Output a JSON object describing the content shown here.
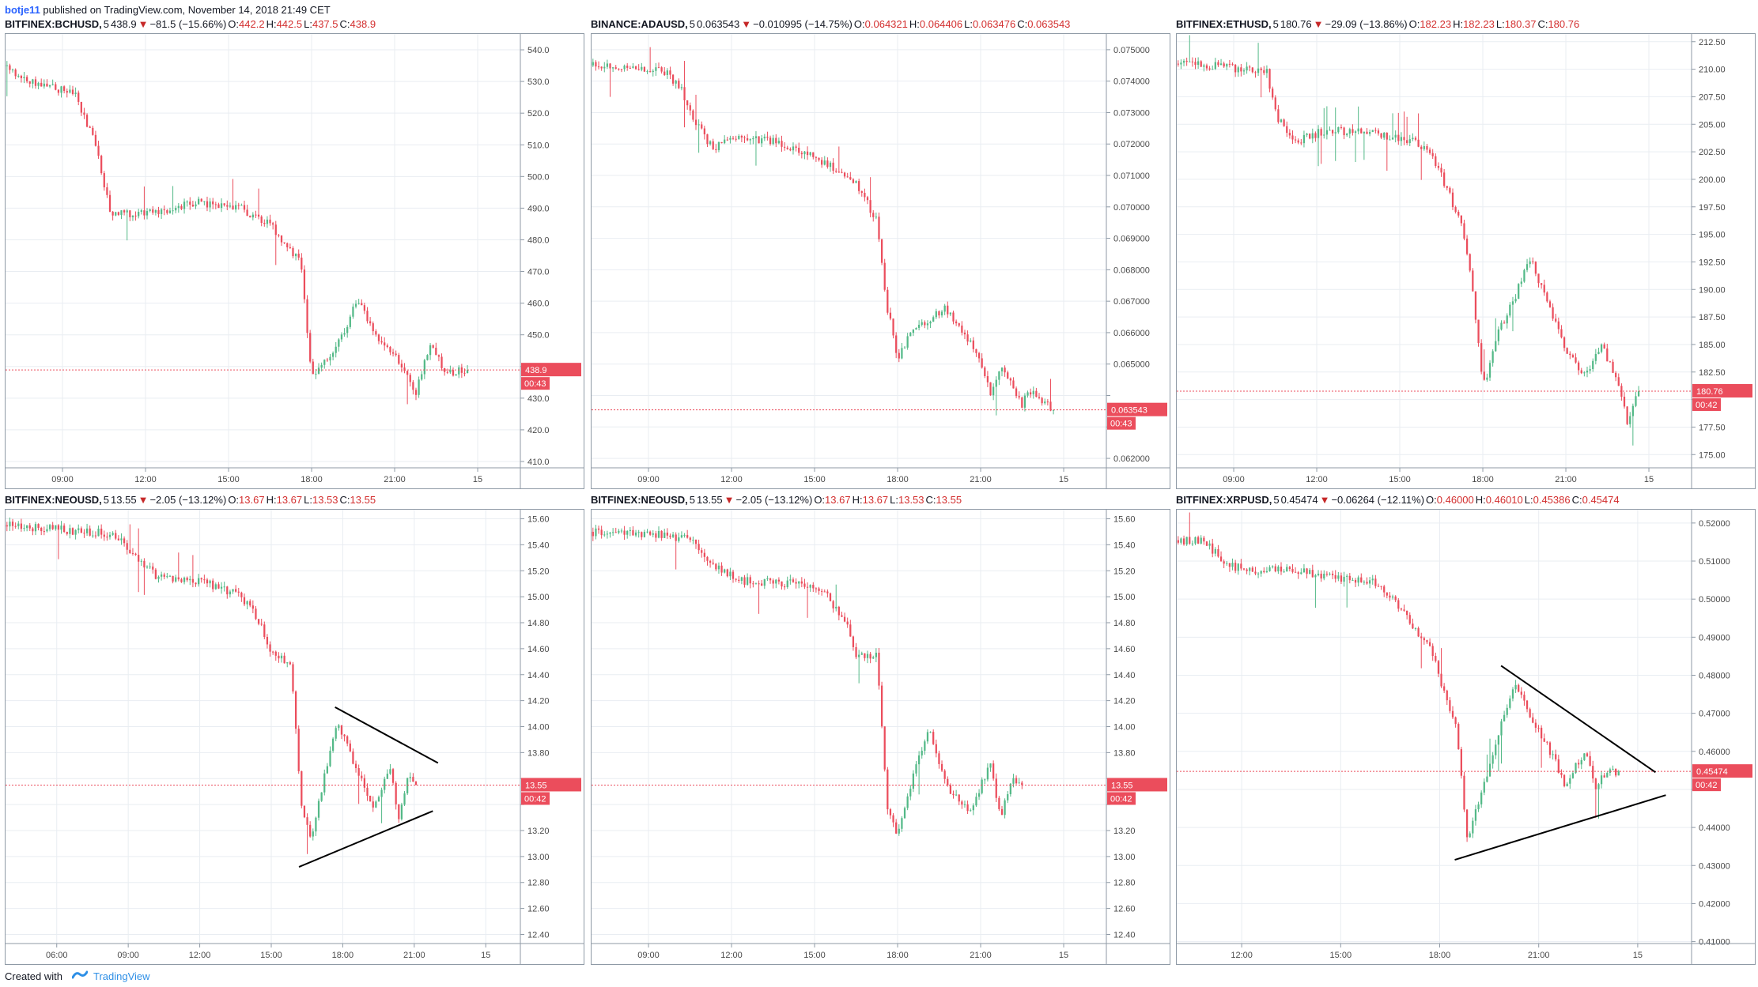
{
  "header": {
    "user": "botje11",
    "text": "published on TradingView.com, November 14, 2018 21:49 CET"
  },
  "footer": {
    "created_with": "Created with",
    "brand": "TradingView"
  },
  "colors": {
    "up": "#53b987",
    "down": "#eb4d5c",
    "price_line": "#eb4d5c",
    "grid": "#e9edf2",
    "axis_text": "#4a4a4a",
    "trendline": "#000000"
  },
  "panels": [
    {
      "symbol": "BITFINEX:BCHUSD",
      "interval": "5",
      "last": "438.9",
      "change": "−81.5 (−15.66%)",
      "o": "442.2",
      "h": "442.5",
      "l": "437.5",
      "c": "438.9",
      "price_tag": "438.9",
      "countdown": "00:43",
      "chart_data": {
        "type": "candlestick",
        "y_ticks": [
          410,
          420,
          430,
          440,
          450,
          460,
          470,
          480,
          490,
          500,
          510,
          520,
          530,
          540
        ],
        "y_tick_labels": [
          "410.0",
          "420.0",
          "430.0",
          "",
          "450.0",
          "460.0",
          "470.0",
          "480.0",
          "490.0",
          "500.0",
          "510.0",
          "520.0",
          "530.0",
          "540.0"
        ],
        "ylim": [
          408,
          545
        ],
        "x_ticks": [
          "09:00",
          "12:00",
          "15:00",
          "18:00",
          "21:00",
          "15"
        ],
        "path": [
          [
            0,
            535
          ],
          [
            0.06,
            530
          ],
          [
            0.14,
            526
          ],
          [
            0.18,
            510
          ],
          [
            0.21,
            488
          ],
          [
            0.3,
            489
          ],
          [
            0.38,
            492
          ],
          [
            0.46,
            490
          ],
          [
            0.52,
            485
          ],
          [
            0.58,
            472
          ],
          [
            0.6,
            436
          ],
          [
            0.63,
            442
          ],
          [
            0.66,
            450
          ],
          [
            0.69,
            462
          ],
          [
            0.72,
            450
          ],
          [
            0.78,
            440
          ],
          [
            0.8,
            430
          ],
          [
            0.83,
            448
          ],
          [
            0.86,
            438
          ],
          [
            0.9,
            438.9
          ]
        ],
        "last": 438.9
      }
    },
    {
      "symbol": "BINANCE:ADAUSD",
      "interval": "5",
      "last": "0.063543",
      "change": "−0.010995 (−14.75%)",
      "o": "0.064321",
      "h": "0.064406",
      "l": "0.063476",
      "c": "0.063543",
      "price_tag": "0.063543",
      "countdown": "00:43",
      "chart_data": {
        "type": "candlestick",
        "y_ticks": [
          0.062,
          0.063,
          0.064,
          0.065,
          0.066,
          0.067,
          0.068,
          0.069,
          0.07,
          0.071,
          0.072,
          0.073,
          0.074,
          0.075
        ],
        "y_tick_labels": [
          "0.062000",
          "",
          "",
          "0.065000",
          "0.066000",
          "0.067000",
          "0.068000",
          "0.069000",
          "0.070000",
          "0.071000",
          "0.072000",
          "0.073000",
          "0.074000",
          "0.075000"
        ],
        "ylim": [
          0.0617,
          0.0755
        ],
        "x_ticks": [
          "09:00",
          "12:00",
          "15:00",
          "18:00",
          "21:00",
          "15"
        ],
        "path": [
          [
            0,
            0.0745
          ],
          [
            0.14,
            0.0744
          ],
          [
            0.18,
            0.0738
          ],
          [
            0.2,
            0.0728
          ],
          [
            0.24,
            0.0719
          ],
          [
            0.3,
            0.0722
          ],
          [
            0.38,
            0.072
          ],
          [
            0.46,
            0.0714
          ],
          [
            0.52,
            0.0708
          ],
          [
            0.56,
            0.0695
          ],
          [
            0.58,
            0.0668
          ],
          [
            0.6,
            0.0652
          ],
          [
            0.63,
            0.0661
          ],
          [
            0.66,
            0.0664
          ],
          [
            0.69,
            0.0668
          ],
          [
            0.72,
            0.0662
          ],
          [
            0.76,
            0.0652
          ],
          [
            0.78,
            0.0641
          ],
          [
            0.8,
            0.0648
          ],
          [
            0.82,
            0.0645
          ],
          [
            0.84,
            0.0637
          ],
          [
            0.86,
            0.0642
          ],
          [
            0.9,
            0.063543
          ]
        ],
        "last": 0.063543
      }
    },
    {
      "symbol": "BITFINEX:ETHUSD",
      "interval": "5",
      "last": "180.76",
      "change": "−29.09 (−13.86%)",
      "o": "182.23",
      "h": "182.23",
      "l": "180.37",
      "c": "180.76",
      "price_tag": "180.76",
      "countdown": "00:42",
      "chart_data": {
        "type": "candlestick",
        "y_ticks": [
          175,
          177.5,
          180,
          182.5,
          185,
          187.5,
          190,
          192.5,
          195,
          197.5,
          200,
          202.5,
          205,
          207.5,
          210,
          212.5
        ],
        "y_tick_labels": [
          "175.00",
          "177.50",
          "",
          "182.50",
          "185.00",
          "187.50",
          "190.00",
          "192.50",
          "195.00",
          "197.50",
          "200.00",
          "202.50",
          "205.00",
          "207.50",
          "210.00",
          "212.50"
        ],
        "ylim": [
          173.8,
          213.2
        ],
        "x_ticks": [
          "09:00",
          "12:00",
          "15:00",
          "18:00",
          "21:00",
          "15"
        ],
        "path": [
          [
            0,
            210.5
          ],
          [
            0.1,
            210.2
          ],
          [
            0.18,
            209.8
          ],
          [
            0.2,
            205.5
          ],
          [
            0.24,
            203.5
          ],
          [
            0.3,
            204.5
          ],
          [
            0.38,
            204.2
          ],
          [
            0.46,
            203.5
          ],
          [
            0.5,
            202.5
          ],
          [
            0.54,
            198
          ],
          [
            0.56,
            196
          ],
          [
            0.58,
            190
          ],
          [
            0.6,
            181
          ],
          [
            0.63,
            186
          ],
          [
            0.66,
            189
          ],
          [
            0.69,
            193
          ],
          [
            0.72,
            189.5
          ],
          [
            0.76,
            184.5
          ],
          [
            0.8,
            182
          ],
          [
            0.83,
            185
          ],
          [
            0.86,
            182
          ],
          [
            0.88,
            178
          ],
          [
            0.9,
            180.76
          ]
        ],
        "last": 180.76
      }
    },
    {
      "symbol": "BITFINEX:NEOUSD",
      "interval": "5",
      "last": "13.55",
      "change": "−2.05 (−13.12%)",
      "o": "13.67",
      "h": "13.67",
      "l": "13.53",
      "c": "13.55",
      "price_tag": "13.55",
      "countdown": "00:42",
      "chart_data": {
        "type": "candlestick",
        "y_ticks": [
          12.4,
          12.6,
          12.8,
          13.0,
          13.2,
          13.4,
          13.6,
          13.8,
          14.0,
          14.2,
          14.4,
          14.6,
          14.8,
          15.0,
          15.2,
          15.4,
          15.6
        ],
        "y_tick_labels": [
          "12.40",
          "12.60",
          "12.80",
          "13.00",
          "13.20",
          "",
          "",
          "13.80",
          "14.00",
          "14.20",
          "14.40",
          "14.60",
          "14.80",
          "15.00",
          "15.20",
          "15.40",
          "15.60"
        ],
        "ylim": [
          12.33,
          15.67
        ],
        "x_ticks": [
          "06:00",
          "09:00",
          "12:00",
          "15:00",
          "18:00",
          "21:00",
          "15"
        ],
        "path": [
          [
            0,
            15.55
          ],
          [
            0.1,
            15.52
          ],
          [
            0.22,
            15.48
          ],
          [
            0.26,
            15.3
          ],
          [
            0.3,
            15.15
          ],
          [
            0.38,
            15.12
          ],
          [
            0.46,
            15.02
          ],
          [
            0.5,
            14.8
          ],
          [
            0.52,
            14.55
          ],
          [
            0.56,
            14.5
          ],
          [
            0.58,
            13.4
          ],
          [
            0.6,
            13.15
          ],
          [
            0.63,
            13.7
          ],
          [
            0.65,
            14.05
          ],
          [
            0.68,
            13.75
          ],
          [
            0.72,
            13.35
          ],
          [
            0.75,
            13.7
          ],
          [
            0.77,
            13.3
          ],
          [
            0.79,
            13.65
          ],
          [
            0.8,
            13.55
          ]
        ],
        "last": 13.55,
        "trendlines": [
          [
            [
              0.64,
              14.15
            ],
            [
              0.84,
              13.72
            ]
          ],
          [
            [
              0.57,
              12.92
            ],
            [
              0.83,
              13.35
            ]
          ]
        ]
      }
    },
    {
      "symbol": "BITFINEX:NEOUSD",
      "interval": "5",
      "last": "13.55",
      "change": "−2.05 (−13.12%)",
      "o": "13.67",
      "h": "13.67",
      "l": "13.53",
      "c": "13.55",
      "price_tag": "13.55",
      "countdown": "00:42",
      "chart_data": {
        "type": "candlestick",
        "y_ticks": [
          12.4,
          12.6,
          12.8,
          13.0,
          13.2,
          13.4,
          13.6,
          13.8,
          14.0,
          14.2,
          14.4,
          14.6,
          14.8,
          15.0,
          15.2,
          15.4,
          15.6
        ],
        "y_tick_labels": [
          "12.40",
          "12.60",
          "12.80",
          "13.00",
          "13.20",
          "",
          "",
          "13.80",
          "14.00",
          "14.20",
          "14.40",
          "14.60",
          "14.80",
          "15.00",
          "15.20",
          "15.40",
          "15.60"
        ],
        "ylim": [
          12.33,
          15.67
        ],
        "x_ticks": [
          "09:00",
          "12:00",
          "15:00",
          "18:00",
          "21:00",
          "15"
        ],
        "path": [
          [
            0,
            15.5
          ],
          [
            0.12,
            15.48
          ],
          [
            0.2,
            15.45
          ],
          [
            0.24,
            15.25
          ],
          [
            0.3,
            15.12
          ],
          [
            0.4,
            15.1
          ],
          [
            0.46,
            15.02
          ],
          [
            0.5,
            14.8
          ],
          [
            0.52,
            14.55
          ],
          [
            0.56,
            14.55
          ],
          [
            0.58,
            13.4
          ],
          [
            0.6,
            13.15
          ],
          [
            0.63,
            13.6
          ],
          [
            0.66,
            14.0
          ],
          [
            0.7,
            13.5
          ],
          [
            0.74,
            13.35
          ],
          [
            0.78,
            13.7
          ],
          [
            0.8,
            13.3
          ],
          [
            0.82,
            13.6
          ],
          [
            0.84,
            13.55
          ]
        ],
        "last": 13.55
      }
    },
    {
      "symbol": "BITFINEX:XRPUSD",
      "interval": "5",
      "last": "0.45474",
      "change": "−0.06264 (−12.11%)",
      "o": "0.46000",
      "h": "0.46010",
      "l": "0.45386",
      "c": "0.45474",
      "price_tag": "0.45474",
      "countdown": "00:42",
      "chart_data": {
        "type": "candlestick",
        "y_ticks": [
          0.41,
          0.42,
          0.43,
          0.44,
          0.45,
          0.46,
          0.47,
          0.48,
          0.49,
          0.5,
          0.51,
          0.52
        ],
        "y_tick_labels": [
          "0.41000",
          "0.42000",
          "0.43000",
          "0.44000",
          "",
          "0.46000",
          "0.47000",
          "0.48000",
          "0.49000",
          "0.50000",
          "0.51000",
          "0.52000"
        ],
        "ylim": [
          0.4095,
          0.5235
        ],
        "x_ticks": [
          "12:00",
          "15:00",
          "18:00",
          "21:00",
          "15"
        ],
        "path": [
          [
            0,
            0.5155
          ],
          [
            0.06,
            0.515
          ],
          [
            0.1,
            0.5095
          ],
          [
            0.14,
            0.5075
          ],
          [
            0.22,
            0.508
          ],
          [
            0.3,
            0.506
          ],
          [
            0.38,
            0.505
          ],
          [
            0.44,
            0.498
          ],
          [
            0.48,
            0.49
          ],
          [
            0.5,
            0.486
          ],
          [
            0.52,
            0.478
          ],
          [
            0.55,
            0.465
          ],
          [
            0.57,
            0.437
          ],
          [
            0.6,
            0.45
          ],
          [
            0.63,
            0.465
          ],
          [
            0.66,
            0.478
          ],
          [
            0.7,
            0.467
          ],
          [
            0.74,
            0.458
          ],
          [
            0.76,
            0.45
          ],
          [
            0.78,
            0.456
          ],
          [
            0.8,
            0.46
          ],
          [
            0.82,
            0.45
          ],
          [
            0.84,
            0.455
          ],
          [
            0.86,
            0.45474
          ]
        ],
        "last": 0.45474,
        "trendlines": [
          [
            [
              0.63,
              0.4825
            ],
            [
              0.93,
              0.4545
            ]
          ],
          [
            [
              0.54,
              0.4315
            ],
            [
              0.95,
              0.4485
            ]
          ]
        ]
      }
    }
  ]
}
